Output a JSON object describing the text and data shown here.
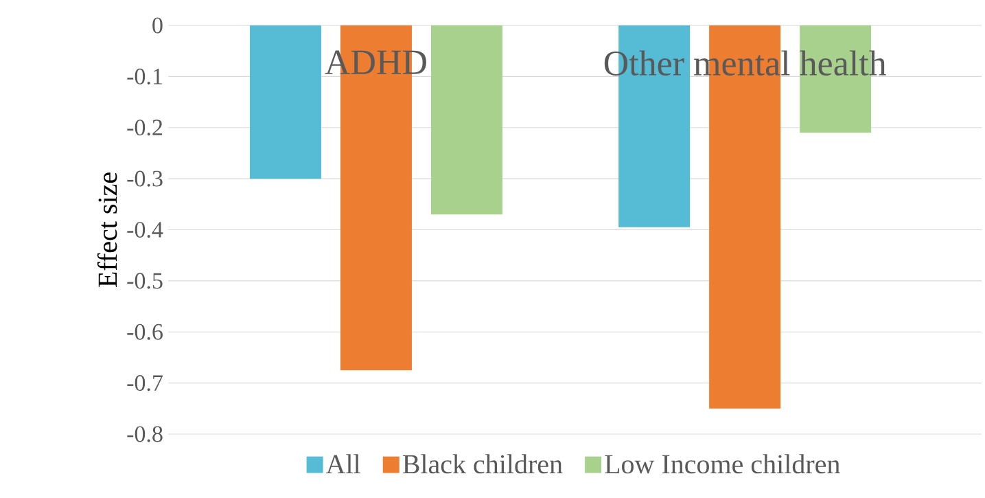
{
  "chart_data": {
    "type": "bar",
    "ylabel": "Effect size",
    "categories": [
      "ADHD",
      "Other mental health"
    ],
    "series": [
      {
        "name": "All",
        "color": "#56bcd6",
        "values": [
          -0.3,
          -0.395
        ]
      },
      {
        "name": "Black children",
        "color": "#ed7d31",
        "values": [
          -0.675,
          -0.75
        ]
      },
      {
        "name": "Low Income children",
        "color": "#a9d18e",
        "values": [
          -0.37,
          -0.21
        ]
      }
    ],
    "ylim": [
      -0.8,
      0
    ],
    "yticks": [
      0,
      -0.1,
      -0.2,
      -0.3,
      -0.4,
      -0.5,
      -0.6,
      -0.7,
      -0.8
    ],
    "grid": "y",
    "legend": "bottom"
  }
}
